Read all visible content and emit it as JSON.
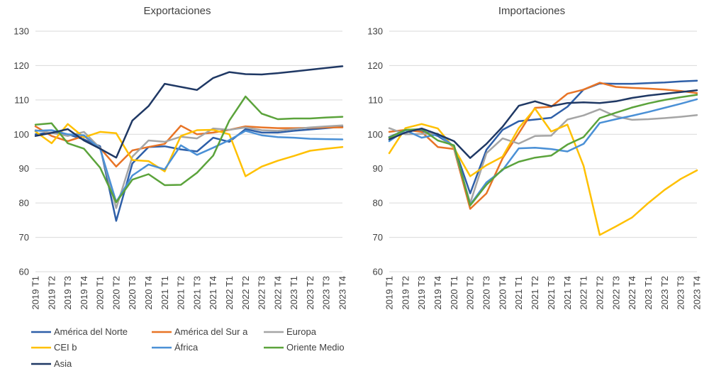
{
  "chart_data": [
    {
      "type": "line",
      "title": "Exportaciones",
      "xlabel": "",
      "ylabel": "",
      "ylim": [
        60,
        130
      ],
      "yticks": [
        60,
        70,
        80,
        90,
        100,
        110,
        120,
        130
      ],
      "grid": "horizontal",
      "categories": [
        "2019 T1",
        "2019 T2",
        "2019 T3",
        "2019 T4",
        "2020 T1",
        "2020 T2",
        "2020 T3",
        "2020 T4",
        "2021 T1",
        "2021 T2",
        "2021 T3",
        "2021 T4",
        "2022 T1",
        "2022 T2",
        "2022 T3",
        "2022 T4",
        "2023 T1",
        "2023 T2",
        "2023 T3",
        "2023 T4"
      ],
      "series": [
        {
          "name": "América del Norte",
          "color": "#2E5FA8",
          "values": [
            100.0,
            100.5,
            100.0,
            98.5,
            96.5,
            74.8,
            91.5,
            96.3,
            96.5,
            95.6,
            95.0,
            99.0,
            97.8,
            101.5,
            100.5,
            100.5,
            101.0,
            101.4,
            101.8,
            102.2
          ]
        },
        {
          "name": "América del Sur a",
          "color": "#E87426",
          "values": [
            102.3,
            99.5,
            98.0,
            99.5,
            96.0,
            90.6,
            95.3,
            96.3,
            97.2,
            102.5,
            100.0,
            100.5,
            101.3,
            102.3,
            102.0,
            101.8,
            101.8,
            101.9,
            102.0,
            102.0
          ]
        },
        {
          "name": "Europa",
          "color": "#A5A5A5",
          "values": [
            101.2,
            100.4,
            99.5,
            100.7,
            96.0,
            78.5,
            93.5,
            98.2,
            97.8,
            99.3,
            98.8,
            101.7,
            101.3,
            102.0,
            101.2,
            101.0,
            101.5,
            102.0,
            102.3,
            102.6
          ]
        },
        {
          "name": "CEI b",
          "color": "#FFC000",
          "values": [
            100.8,
            97.4,
            103.0,
            99.1,
            100.7,
            100.3,
            92.5,
            92.2,
            89.2,
            99.5,
            101.2,
            101.3,
            100.0,
            87.8,
            90.6,
            92.3,
            93.7,
            95.2,
            95.8,
            96.3
          ]
        },
        {
          "name": "África",
          "color": "#4A90D6",
          "values": [
            101.0,
            101.2,
            100.0,
            99.7,
            95.8,
            80.3,
            88.0,
            91.2,
            89.8,
            96.8,
            94.0,
            96.1,
            98.3,
            101.0,
            99.7,
            99.2,
            99.0,
            98.7,
            98.6,
            98.5
          ]
        },
        {
          "name": "Oriente Medio",
          "color": "#5BA33B",
          "values": [
            102.8,
            103.2,
            97.4,
            95.8,
            90.3,
            80.2,
            86.8,
            88.4,
            85.2,
            85.3,
            88.8,
            93.8,
            104.0,
            111.0,
            106.0,
            104.4,
            104.6,
            104.6,
            104.9,
            105.1
          ]
        },
        {
          "name": "Asia",
          "color": "#1F3864",
          "values": [
            99.5,
            100.4,
            101.5,
            98.2,
            95.8,
            93.2,
            104.0,
            108.2,
            114.7,
            113.8,
            112.9,
            116.4,
            118.1,
            117.5,
            117.4,
            117.8,
            118.3,
            118.8,
            119.3,
            119.8
          ]
        }
      ]
    },
    {
      "type": "line",
      "title": "Importaciones",
      "xlabel": "",
      "ylabel": "",
      "ylim": [
        60,
        130
      ],
      "yticks": [
        60,
        70,
        80,
        90,
        100,
        110,
        120,
        130
      ],
      "grid": "horizontal",
      "categories": [
        "2019 T1",
        "2019 T2",
        "2019 T3",
        "2019 T4",
        "2020 T1",
        "2020 T2",
        "2020 T3",
        "2020 T4",
        "2021 T1",
        "2021 T2",
        "2021 T3",
        "2021 T4",
        "2022 T1",
        "2022 T2",
        "2022 T3",
        "2022 T4",
        "2023 T1",
        "2023 T2",
        "2023 T3",
        "2023 T4"
      ],
      "series": [
        {
          "name": "América del Norte",
          "color": "#2E5FA8",
          "values": [
            99.2,
            101.2,
            101.0,
            99.5,
            96.5,
            82.8,
            95.5,
            101.3,
            103.8,
            104.3,
            104.8,
            108.0,
            113.0,
            114.8,
            114.7,
            114.7,
            114.9,
            115.1,
            115.4,
            115.6
          ]
        },
        {
          "name": "América del Sur a",
          "color": "#E87426",
          "values": [
            100.7,
            101.3,
            100.7,
            96.3,
            95.7,
            78.3,
            82.8,
            93.0,
            100.3,
            107.7,
            108.0,
            111.8,
            113.0,
            115.0,
            113.8,
            113.5,
            113.3,
            113.0,
            112.6,
            112.0
          ]
        },
        {
          "name": "Europa",
          "color": "#A5A5A5",
          "values": [
            101.8,
            100.0,
            100.1,
            100.2,
            96.0,
            80.0,
            94.5,
            98.8,
            97.3,
            99.5,
            99.6,
            104.3,
            105.5,
            107.3,
            105.2,
            104.2,
            104.4,
            104.7,
            105.1,
            105.6
          ]
        },
        {
          "name": "CEI b",
          "color": "#FFC000",
          "values": [
            94.5,
            101.8,
            103.0,
            101.7,
            96.0,
            87.8,
            91.0,
            93.5,
            101.8,
            107.5,
            100.8,
            102.8,
            90.8,
            70.7,
            73.2,
            75.8,
            80.0,
            83.8,
            87.0,
            89.5
          ]
        },
        {
          "name": "África",
          "color": "#4A90D6",
          "values": [
            98.0,
            101.2,
            99.0,
            100.0,
            96.5,
            79.5,
            86.0,
            89.6,
            95.9,
            96.1,
            95.7,
            95.0,
            97.2,
            103.3,
            104.4,
            105.4,
            106.5,
            107.7,
            108.9,
            110.2
          ]
        },
        {
          "name": "Oriente Medio",
          "color": "#5BA33B",
          "values": [
            99.0,
            101.3,
            101.5,
            98.2,
            96.8,
            79.3,
            85.3,
            89.8,
            92.0,
            93.2,
            93.8,
            97.0,
            99.2,
            104.7,
            106.3,
            107.8,
            109.0,
            110.0,
            110.8,
            111.5
          ]
        },
        {
          "name": "Asia",
          "color": "#1F3864",
          "values": [
            98.5,
            100.5,
            101.7,
            100.0,
            98.0,
            93.1,
            97.2,
            102.2,
            108.3,
            109.6,
            108.2,
            109.1,
            109.3,
            109.1,
            109.6,
            110.6,
            111.3,
            111.8,
            112.3,
            112.8
          ]
        }
      ]
    }
  ],
  "legend": [
    {
      "label": "América del Norte",
      "color": "#2E5FA8"
    },
    {
      "label": "América del Sur a",
      "color": "#E87426"
    },
    {
      "label": "Europa",
      "color": "#A5A5A5"
    },
    {
      "label": "CEI b",
      "color": "#FFC000"
    },
    {
      "label": "África",
      "color": "#4A90D6"
    },
    {
      "label": "Oriente Medio",
      "color": "#5BA33B"
    },
    {
      "label": "Asia",
      "color": "#1F3864"
    }
  ]
}
